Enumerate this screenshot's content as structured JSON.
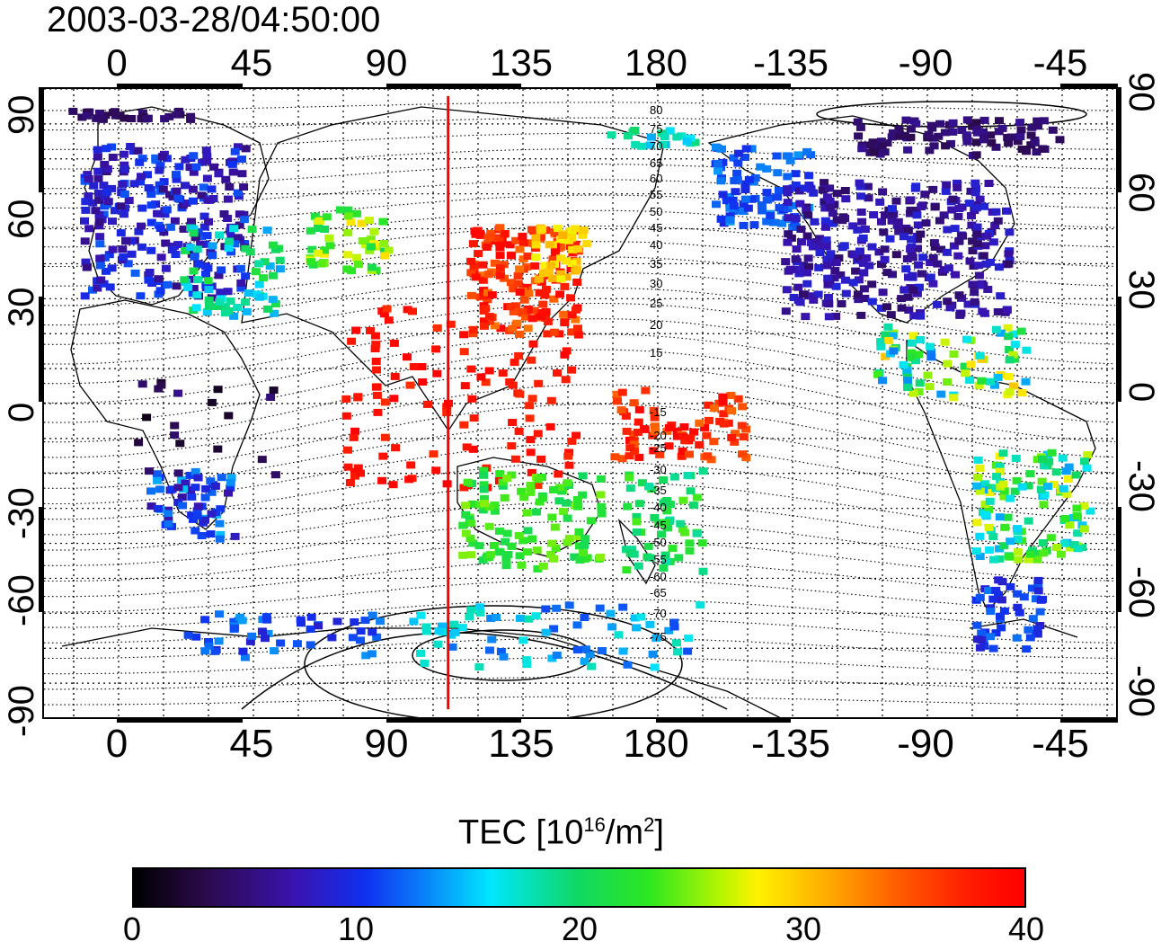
{
  "title": "2003-03-28/04:50:00",
  "lon_ticks": [
    "0",
    "45",
    "90",
    "135",
    "180",
    "-135",
    "-90",
    "-45"
  ],
  "lat_ticks_left": [
    "90",
    "60",
    "30",
    "0",
    "-30",
    "-60",
    "-90"
  ],
  "lat_ticks_right": [
    "90",
    "60",
    "30",
    "0",
    "-30",
    "-60",
    "-90"
  ],
  "contour_labels": [
    "80",
    "75",
    "70",
    "65",
    "60",
    "55",
    "50",
    "45",
    "40",
    "35",
    "30",
    "25",
    "20",
    "15",
    "-15",
    "-20",
    "-25",
    "-30",
    "-35",
    "-40",
    "-45",
    "-50",
    "-55",
    "-60",
    "-65",
    "-70",
    "-75"
  ],
  "colorbar": {
    "label_text": "TEC  [10",
    "label_sup1": "16",
    "label_mid": "/m",
    "label_sup2": "2",
    "label_end": "]",
    "ticks": [
      "0",
      "10",
      "20",
      "30",
      "40"
    ],
    "min": 0,
    "max": 40
  },
  "terminator_color": "#ff0000",
  "terminator_longitude": 110
}
